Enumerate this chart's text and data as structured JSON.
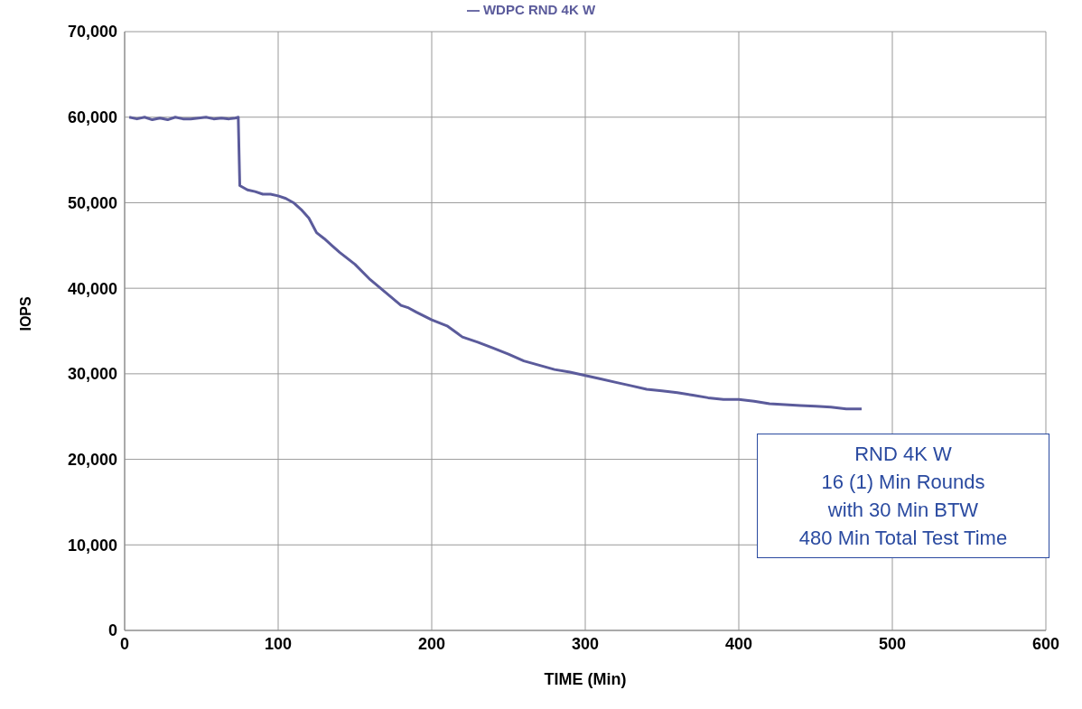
{
  "chart_data": {
    "type": "line",
    "xlabel": "TIME (Min)",
    "ylabel": "IOPS",
    "series": [
      {
        "name": "WDPC RND 4K W",
        "color": "#5b5b9b",
        "x": [
          3,
          8,
          13,
          18,
          23,
          28,
          33,
          38,
          43,
          48,
          53,
          58,
          63,
          68,
          72,
          74,
          75,
          80,
          85,
          90,
          95,
          100,
          105,
          110,
          115,
          120,
          125,
          130,
          135,
          140,
          150,
          160,
          170,
          180,
          185,
          190,
          200,
          210,
          220,
          230,
          240,
          250,
          260,
          270,
          280,
          290,
          300,
          310,
          320,
          330,
          340,
          350,
          360,
          370,
          380,
          390,
          400,
          410,
          420,
          430,
          440,
          450,
          460,
          470,
          480
        ],
        "values": [
          60000,
          59800,
          60000,
          59700,
          59900,
          59700,
          60000,
          59800,
          59800,
          59900,
          60000,
          59800,
          59900,
          59800,
          59900,
          60000,
          52000,
          51500,
          51300,
          51000,
          51000,
          50800,
          50500,
          50000,
          49200,
          48200,
          46500,
          45800,
          45000,
          44200,
          42800,
          41000,
          39500,
          38000,
          37700,
          37200,
          36300,
          35600,
          34300,
          33700,
          33000,
          32300,
          31500,
          31000,
          30500,
          30200,
          29800,
          29400,
          29000,
          28600,
          28200,
          28000,
          27800,
          27500,
          27200,
          27000,
          27000,
          26800,
          26500,
          26400,
          26300,
          26200,
          26100,
          25900,
          25900
        ]
      }
    ],
    "xlim": [
      0,
      600
    ],
    "xticks": [
      0,
      100,
      200,
      300,
      400,
      500,
      600
    ],
    "ylim": [
      0,
      70000
    ],
    "yticks": [
      {
        "value": 0,
        "label": "0"
      },
      {
        "value": 10000,
        "label": "10,000"
      },
      {
        "value": 20000,
        "label": "20,000"
      },
      {
        "value": 30000,
        "label": "30,000"
      },
      {
        "value": 40000,
        "label": "40,000"
      },
      {
        "value": 50000,
        "label": "50,000"
      },
      {
        "value": 60000,
        "label": "60,000"
      },
      {
        "value": 70000,
        "label": "70,000"
      }
    ],
    "grid": true,
    "legend": "top",
    "marker": "none",
    "line_style": "solid",
    "annotations": [
      "RND 4K W\n16 (1) Min Rounds\nwith 30 Min BTW\n480 Min Total Test Time"
    ]
  }
}
